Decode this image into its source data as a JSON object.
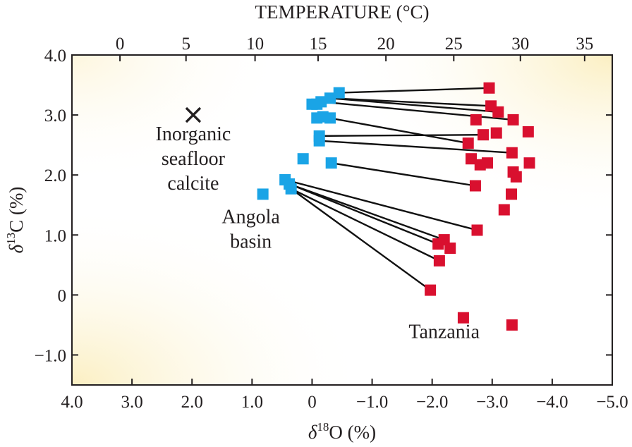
{
  "chart_data": {
    "type": "scatter",
    "title": "",
    "xlabel": {
      "prefix": "δ",
      "sup": "18",
      "suffix": "O (%)"
    },
    "ylabel": {
      "prefix": "δ",
      "sup": "13",
      "suffix": "C (%)"
    },
    "top_axis_label": "TEMPERATURE (°C)",
    "xlim": [
      4.0,
      -5.0
    ],
    "ylim": [
      -1.5,
      4.0
    ],
    "x_reversed": true,
    "x_ticks": [
      4.0,
      3.0,
      2.0,
      1.0,
      0,
      -1.0,
      -2.0,
      -3.0,
      -4.0,
      -5.0
    ],
    "x_tick_labels": [
      "4.0",
      "3.0",
      "2.0",
      "1.0",
      "0",
      "−1.0",
      "−2.0",
      "−3.0",
      "−4.0",
      "−5.0"
    ],
    "y_ticks": [
      4.0,
      3.0,
      2.0,
      1.0,
      0,
      -1.0
    ],
    "y_tick_labels": [
      "4.0",
      "3.0",
      "2.0",
      "1.0",
      "0",
      "−1.0"
    ],
    "top_ticks_x": [
      3.0,
      1.88,
      0.78,
      -0.3,
      -1.37,
      -2.43,
      -3.48
    ],
    "top_tick_labels": [
      "0",
      "5",
      "10",
      "15",
      "20",
      "25",
      "30",
      "35"
    ],
    "top_ticks_x_full": [
      3.2,
      2.1,
      0.95,
      -0.1,
      -1.23,
      -2.36,
      -3.47,
      -4.54
    ],
    "grid": false,
    "legend": "none",
    "colors": {
      "angola": "#1aa4e6",
      "tanzania": "#d9102f",
      "line": "#111111",
      "background_glow": "#fbf1c8"
    },
    "series": [
      {
        "name": "Angola basin",
        "color": "#1aa4e6",
        "points": [
          {
            "x": -0.45,
            "y": 3.37
          },
          {
            "x": -0.3,
            "y": 3.28
          },
          {
            "x": -0.15,
            "y": 3.22
          },
          {
            "x": -0.08,
            "y": 3.18
          },
          {
            "x": 0.0,
            "y": 3.18
          },
          {
            "x": -0.3,
            "y": 2.95
          },
          {
            "x": -0.18,
            "y": 2.97
          },
          {
            "x": -0.08,
            "y": 2.95
          },
          {
            "x": -0.12,
            "y": 2.65
          },
          {
            "x": -0.12,
            "y": 2.57
          },
          {
            "x": 0.15,
            "y": 2.27
          },
          {
            "x": -0.32,
            "y": 2.2
          },
          {
            "x": 0.45,
            "y": 1.92
          },
          {
            "x": 0.38,
            "y": 1.85
          },
          {
            "x": 0.35,
            "y": 1.77
          },
          {
            "x": 0.82,
            "y": 1.68
          }
        ]
      },
      {
        "name": "Tanzania",
        "color": "#d9102f",
        "points": [
          {
            "x": -2.95,
            "y": 3.45
          },
          {
            "x": -2.98,
            "y": 3.15
          },
          {
            "x": -3.1,
            "y": 3.05
          },
          {
            "x": -2.73,
            "y": 2.92
          },
          {
            "x": -3.35,
            "y": 2.92
          },
          {
            "x": -2.85,
            "y": 2.67
          },
          {
            "x": -3.07,
            "y": 2.7
          },
          {
            "x": -3.6,
            "y": 2.72
          },
          {
            "x": -2.6,
            "y": 2.53
          },
          {
            "x": -3.33,
            "y": 2.37
          },
          {
            "x": -2.65,
            "y": 2.27
          },
          {
            "x": -2.8,
            "y": 2.17
          },
          {
            "x": -2.92,
            "y": 2.2
          },
          {
            "x": -3.62,
            "y": 2.2
          },
          {
            "x": -3.35,
            "y": 2.05
          },
          {
            "x": -3.4,
            "y": 1.97
          },
          {
            "x": -2.72,
            "y": 1.82
          },
          {
            "x": -3.32,
            "y": 1.68
          },
          {
            "x": -3.2,
            "y": 1.42
          },
          {
            "x": -2.75,
            "y": 1.08
          },
          {
            "x": -2.2,
            "y": 0.92
          },
          {
            "x": -2.1,
            "y": 0.85
          },
          {
            "x": -2.3,
            "y": 0.78
          },
          {
            "x": -2.12,
            "y": 0.57
          },
          {
            "x": -1.97,
            "y": 0.08
          },
          {
            "x": -2.52,
            "y": -0.38
          },
          {
            "x": -3.33,
            "y": -0.5
          }
        ]
      }
    ],
    "links": [
      {
        "x1": -0.45,
        "y1": 3.37,
        "x2": -2.95,
        "y2": 3.45
      },
      {
        "x1": -0.3,
        "y1": 3.28,
        "x2": -2.98,
        "y2": 3.15
      },
      {
        "x1": -0.15,
        "y1": 3.22,
        "x2": -3.35,
        "y2": 2.92
      },
      {
        "x1": -0.3,
        "y1": 3.28,
        "x2": -3.1,
        "y2": 3.05
      },
      {
        "x1": -0.18,
        "y1": 2.97,
        "x2": -2.6,
        "y2": 2.53
      },
      {
        "x1": -0.12,
        "y1": 2.65,
        "x2": -2.85,
        "y2": 2.67
      },
      {
        "x1": -0.12,
        "y1": 2.57,
        "x2": -3.33,
        "y2": 2.37
      },
      {
        "x1": -0.32,
        "y1": 2.2,
        "x2": -2.72,
        "y2": 1.82
      },
      {
        "x1": 0.45,
        "y1": 1.92,
        "x2": -2.75,
        "y2": 1.08
      },
      {
        "x1": 0.38,
        "y1": 1.85,
        "x2": -2.2,
        "y2": 0.92
      },
      {
        "x1": 0.38,
        "y1": 1.85,
        "x2": -2.1,
        "y2": 0.85
      },
      {
        "x1": 0.35,
        "y1": 1.77,
        "x2": -2.12,
        "y2": 0.57
      },
      {
        "x1": 0.35,
        "y1": 1.77,
        "x2": -1.97,
        "y2": 0.08
      }
    ],
    "marker": {
      "label": "×",
      "x": 1.98,
      "y": 3.0
    },
    "annotations": [
      {
        "id": "inorganic",
        "lines": [
          "Inorganic",
          "seafloor",
          "calcite"
        ],
        "x": 1.98,
        "y": 2.58
      },
      {
        "id": "angola",
        "lines": [
          "Angola",
          "basin"
        ],
        "x": 1.02,
        "y": 1.2
      },
      {
        "id": "tanzania",
        "lines": [
          "Tanzania"
        ],
        "x": -2.2,
        "y": -0.72
      }
    ]
  }
}
